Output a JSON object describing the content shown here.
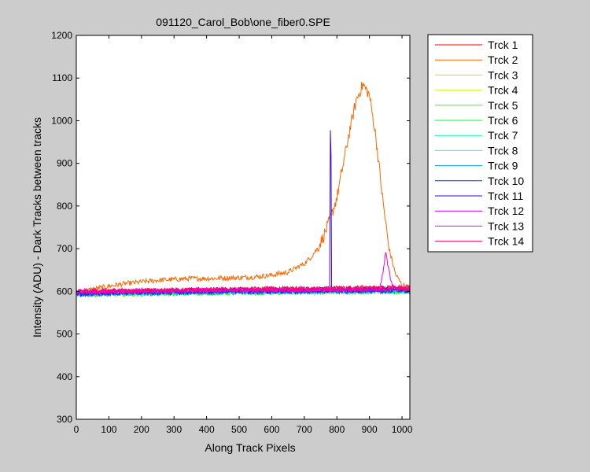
{
  "chart_data": {
    "type": "line",
    "title": "091120_Carol_Bob\\one_fiber0.SPE",
    "xlabel": "Along Track Pixels",
    "ylabel": "Intensity (ADU) - Dark Tracks between tracks",
    "xlim": [
      0,
      1024
    ],
    "ylim": [
      300,
      1200
    ],
    "xticks": [
      "0",
      "100",
      "200",
      "300",
      "400",
      "500",
      "600",
      "700",
      "800",
      "900",
      "1000"
    ],
    "yticks": [
      "300",
      "400",
      "500",
      "600",
      "700",
      "800",
      "900",
      "1000",
      "1100",
      "1200"
    ],
    "grid": false,
    "legend_position": "outside-top-right",
    "series": [
      {
        "name": "Trck 1",
        "color": "#ff0000",
        "x": [
          0,
          100,
          200,
          300,
          400,
          500,
          600,
          700,
          800,
          900,
          1000,
          1024
        ],
        "values": [
          595,
          598,
          600,
          602,
          603,
          604,
          605,
          606,
          607,
          608,
          609,
          609
        ]
      },
      {
        "name": "Trck 2",
        "color": "#ff6600",
        "x": [
          0,
          50,
          100,
          150,
          200,
          250,
          300,
          350,
          400,
          450,
          500,
          550,
          600,
          650,
          700,
          720,
          740,
          760,
          780,
          800,
          820,
          840,
          860,
          880,
          900,
          920,
          940,
          960,
          980,
          1000,
          1024
        ],
        "values": [
          595,
          605,
          612,
          618,
          622,
          626,
          628,
          630,
          630,
          631,
          632,
          634,
          638,
          645,
          665,
          680,
          700,
          730,
          770,
          820,
          900,
          980,
          1050,
          1085,
          1060,
          960,
          820,
          700,
          640,
          615,
          608
        ]
      },
      {
        "name": "Trck 3",
        "color": "#ffcc00",
        "x": [
          0,
          200,
          400,
          600,
          800,
          1024
        ],
        "values": [
          598,
          600,
          601,
          602,
          603,
          604
        ]
      },
      {
        "name": "Trck 4",
        "color": "#ccff00",
        "x": [
          0,
          200,
          400,
          600,
          800,
          1024
        ],
        "values": [
          596,
          598,
          599,
          600,
          601,
          602
        ]
      },
      {
        "name": "Trck 5",
        "color": "#33ff00",
        "x": [
          0,
          200,
          400,
          600,
          800,
          1024
        ],
        "values": [
          592,
          594,
          596,
          597,
          598,
          599
        ]
      },
      {
        "name": "Trck 6",
        "color": "#00ff33",
        "x": [
          0,
          200,
          400,
          600,
          800,
          1024
        ],
        "values": [
          594,
          596,
          598,
          599,
          600,
          601
        ]
      },
      {
        "name": "Trck 7",
        "color": "#00ff99",
        "x": [
          0,
          200,
          400,
          600,
          800,
          1024
        ],
        "values": [
          595,
          597,
          599,
          600,
          601,
          602
        ]
      },
      {
        "name": "Trck 8",
        "color": "#00ffff",
        "x": [
          0,
          200,
          400,
          600,
          800,
          1024
        ],
        "values": [
          596,
          598,
          600,
          601,
          602,
          603
        ]
      },
      {
        "name": "Trck 9",
        "color": "#0099ff",
        "x": [
          0,
          200,
          400,
          600,
          800,
          1024
        ],
        "values": [
          593,
          596,
          598,
          599,
          600,
          601
        ]
      },
      {
        "name": "Trck 10",
        "color": "#0033ff",
        "x": [
          0,
          200,
          400,
          600,
          800,
          1024
        ],
        "values": [
          594,
          597,
          599,
          600,
          601,
          602
        ]
      },
      {
        "name": "Trck 11",
        "color": "#3300ff",
        "x": [
          0,
          200,
          400,
          600,
          770,
          778,
          780,
          782,
          784,
          786,
          790,
          800,
          1024
        ],
        "values": [
          597,
          599,
          601,
          602,
          603,
          603,
          990,
          930,
          605,
          604,
          604,
          604,
          606
        ]
      },
      {
        "name": "Trck 12",
        "color": "#cc00ff",
        "x": [
          0,
          200,
          400,
          600,
          800,
          1024
        ],
        "values": [
          598,
          600,
          602,
          603,
          604,
          605
        ]
      },
      {
        "name": "Trck 13",
        "color": "#ff00cc",
        "x": [
          0,
          200,
          400,
          600,
          800,
          930,
          940,
          950,
          960,
          970,
          1024
        ],
        "values": [
          599,
          601,
          603,
          604,
          605,
          607,
          640,
          690,
          650,
          610,
          607
        ]
      },
      {
        "name": "Trck 14",
        "color": "#ff0066",
        "x": [
          0,
          200,
          400,
          600,
          800,
          1024
        ],
        "values": [
          600,
          602,
          604,
          605,
          606,
          607
        ]
      }
    ]
  }
}
